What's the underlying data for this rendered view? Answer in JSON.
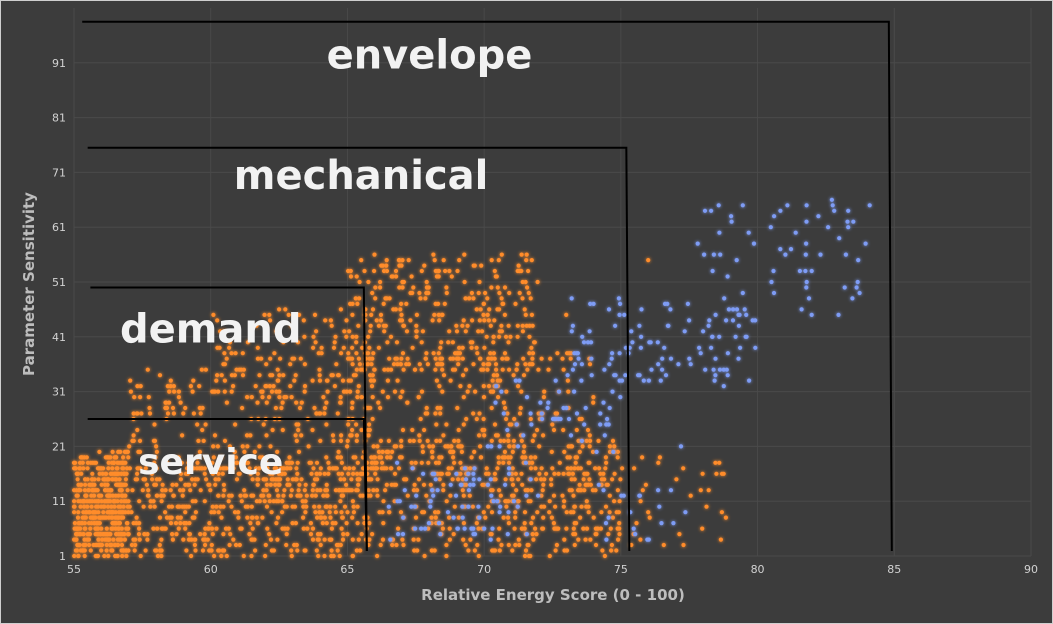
{
  "chart_data": {
    "type": "scatter",
    "title": "",
    "xlabel": "Relative Energy Score (0 - 100)",
    "ylabel": "Parameter Sensitivity",
    "xlim": [
      55,
      90
    ],
    "ylim": [
      1,
      101
    ],
    "x_ticks": [
      55,
      60,
      65,
      70,
      75,
      80,
      85,
      90
    ],
    "y_ticks": [
      1,
      11,
      21,
      31,
      41,
      51,
      61,
      71,
      81,
      91
    ],
    "grid": true,
    "legend": "none",
    "colors": {
      "orange": "#ff8c2a",
      "blue": "#7e9cf5",
      "background": "#3c3c3c",
      "boundary": "#000000"
    },
    "regions": [
      {
        "label": "envelope",
        "x_min": 55.3,
        "x_max": 84.8,
        "y_top": 98.5
      },
      {
        "label": "mechanical",
        "x_min": 55.5,
        "x_max": 75.2,
        "y_top": 75.5
      },
      {
        "label": "demand",
        "x_min": 55.6,
        "x_max": 65.6,
        "y_top": 50
      },
      {
        "label": "service",
        "x_min": 55.5,
        "x_max": 65.6,
        "y_top": 26
      }
    ],
    "series": [
      {
        "color": "orange",
        "clusters": [
          {
            "x": [
              55,
              57
            ],
            "y": [
              1,
              20
            ],
            "n": 340
          },
          {
            "x": [
              55,
              66
            ],
            "y": [
              1,
              18
            ],
            "n": 650
          },
          {
            "x": [
              57,
              66
            ],
            "y": [
              15,
              35
            ],
            "n": 240
          },
          {
            "x": [
              60,
              66
            ],
            "y": [
              30,
              46
            ],
            "n": 110
          },
          {
            "x": [
              65,
              72
            ],
            "y": [
              35,
              56
            ],
            "n": 300
          },
          {
            "x": [
              65,
              74
            ],
            "y": [
              15,
              38
            ],
            "n": 260
          },
          {
            "x": [
              66,
              75
            ],
            "y": [
              1,
              22
            ],
            "n": 380
          },
          {
            "x": [
              71,
              79
            ],
            "y": [
              3,
              20
            ],
            "n": 70
          }
        ],
        "points": [
          [
            76,
            55
          ],
          [
            78.7,
            16
          ],
          [
            78.6,
            18
          ],
          [
            73,
            45
          ],
          [
            70.5,
            50
          ]
        ]
      },
      {
        "color": "blue",
        "clusters": [
          {
            "x": [
              66.5,
              72
            ],
            "y": [
              4,
              18
            ],
            "n": 80
          },
          {
            "x": [
              70,
              75
            ],
            "y": [
              20,
              33
            ],
            "n": 50
          },
          {
            "x": [
              73,
              80
            ],
            "y": [
              32,
              48
            ],
            "n": 110
          },
          {
            "x": [
              77.5,
              84
            ],
            "y": [
              44,
              66
            ],
            "n": 60
          },
          {
            "x": [
              74,
              77.5
            ],
            "y": [
              2,
              14
            ],
            "n": 20
          }
        ],
        "points": [
          [
            84.1,
            65
          ],
          [
            83.5,
            62
          ],
          [
            80.6,
            49
          ],
          [
            77.2,
            21
          ]
        ]
      }
    ]
  }
}
